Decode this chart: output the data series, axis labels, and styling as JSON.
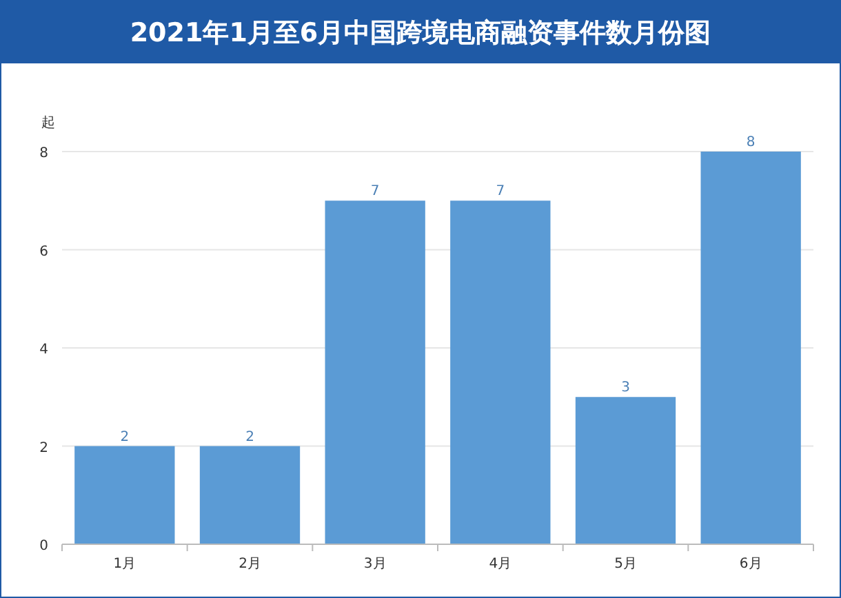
{
  "chart_data": {
    "type": "bar",
    "title": "2021年1月至6月中国跨境电商融资事件数月份图",
    "ylabel": "起",
    "categories": [
      "1月",
      "2月",
      "3月",
      "4月",
      "5月",
      "6月"
    ],
    "values": [
      2,
      2,
      7,
      7,
      3,
      8
    ],
    "color": "#5b9bd5",
    "ylim": [
      0,
      8
    ],
    "yticks": [
      0,
      2,
      4,
      6,
      8
    ],
    "grid": "y",
    "data_labels": true
  }
}
